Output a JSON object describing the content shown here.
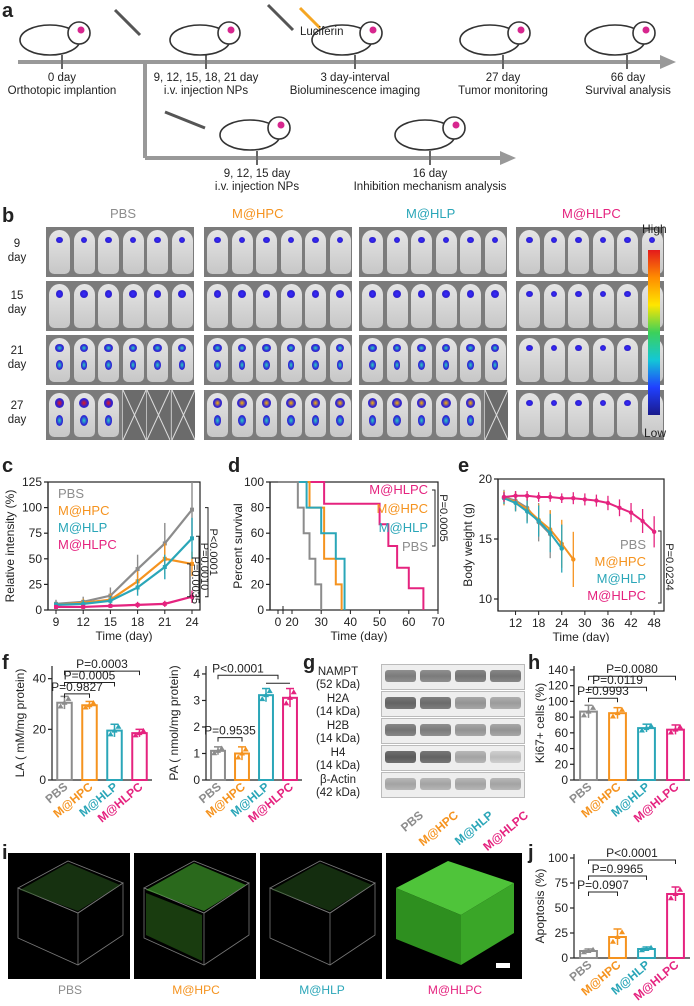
{
  "colors": {
    "pbs": "#8c8c8c",
    "hpc": "#f5931f",
    "hlp": "#2aa6b8",
    "hlpc": "#e5237f"
  },
  "panel_a": {
    "label": "a",
    "luciferin": "Luciferin",
    "top_timeline": [
      {
        "line1": "0 day",
        "line2": "Orthotopic implantion"
      },
      {
        "line1": "9, 12, 15, 18, 21 day",
        "line2": "i.v. injection NPs"
      },
      {
        "line1": "3 day-interval",
        "line2": "Bioluminescence imaging"
      },
      {
        "line1": "27 day",
        "line2": "Tumor monitoring"
      },
      {
        "line1": "66 day",
        "line2": "Survival analysis"
      }
    ],
    "bottom_timeline": [
      {
        "line1": "9, 12, 15 day",
        "line2": "i.v. injection NPs"
      },
      {
        "line1": "16 day",
        "line2": "Inhibition mechanism analysis"
      }
    ]
  },
  "panel_b": {
    "label": "b",
    "groups": [
      "PBS",
      "M@HPC",
      "M@HLP",
      "M@HLPC"
    ],
    "rows": [
      {
        "n": "9",
        "u": "day"
      },
      {
        "n": "15",
        "u": "day"
      },
      {
        "n": "21",
        "u": "day"
      },
      {
        "n": "27",
        "u": "day"
      }
    ],
    "colorbar_high": "High",
    "colorbar_low": "Low"
  },
  "panel_c": {
    "label": "c"
  },
  "panel_d": {
    "label": "d"
  },
  "panel_e": {
    "label": "e"
  },
  "panel_f": {
    "label": "f"
  },
  "panel_g": {
    "label": "g",
    "proteins": [
      {
        "name": "NAMPT",
        "kda": "(52 kDa)"
      },
      {
        "name": "H2A",
        "kda": "(14 kDa)"
      },
      {
        "name": "H2B",
        "kda": "(14 kDa)"
      },
      {
        "name": "H4",
        "kda": "(14 kDa)"
      },
      {
        "name": "β-Actin",
        "kda": "(42 kDa)"
      }
    ],
    "lanes": [
      "PBS",
      "M@HPC",
      "M@HLP",
      "M@HLPC"
    ]
  },
  "panel_h": {
    "label": "h"
  },
  "panel_i": {
    "label": "i",
    "groups": [
      "PBS",
      "M@HPC",
      "M@HLP",
      "M@HLPC"
    ]
  },
  "panel_j": {
    "label": "j"
  },
  "chart_data": [
    {
      "id": "c",
      "type": "line",
      "xlabel": "Time (day)",
      "ylabel": "Relative intensity (%)",
      "x": [
        9,
        12,
        15,
        18,
        21,
        24
      ],
      "xticks": [
        9,
        12,
        15,
        18,
        21,
        24
      ],
      "ylim": [
        0,
        125
      ],
      "yticks": [
        0,
        25,
        50,
        75,
        100,
        125
      ],
      "series": [
        {
          "name": "PBS",
          "color": "#8c8c8c",
          "values": [
            6,
            8,
            14,
            40,
            65,
            98
          ],
          "err": [
            4,
            5,
            8,
            14,
            20,
            30
          ]
        },
        {
          "name": "M@HPC",
          "color": "#f5931f",
          "values": [
            5,
            7,
            10,
            28,
            50,
            45
          ],
          "err": [
            3,
            4,
            6,
            10,
            15,
            12
          ]
        },
        {
          "name": "M@HLP",
          "color": "#2aa6b8",
          "values": [
            5,
            6,
            9,
            22,
            42,
            70
          ],
          "err": [
            3,
            4,
            5,
            8,
            12,
            20
          ]
        },
        {
          "name": "M@HLPC",
          "color": "#e5237f",
          "values": [
            3,
            3,
            4,
            5,
            6,
            13
          ],
          "err": [
            2,
            2,
            2,
            3,
            3,
            6
          ]
        }
      ],
      "pvalues": [
        "P<0.0001",
        "P=0.0010",
        "P=0.0035"
      ]
    },
    {
      "id": "d",
      "type": "line",
      "xlabel": "Time (day)",
      "ylabel": "Percent survival",
      "xticks": [
        0,
        20,
        30,
        40,
        50,
        60,
        70
      ],
      "ylim": [
        0,
        100
      ],
      "yticks": [
        0,
        20,
        40,
        60,
        80,
        100
      ],
      "series": [
        {
          "name": "M@HLPC",
          "color": "#e5237f",
          "steps": [
            [
              0,
              100
            ],
            [
              31,
              100
            ],
            [
              31,
              83
            ],
            [
              50,
              83
            ],
            [
              50,
              67
            ],
            [
              53,
              67
            ],
            [
              53,
              50
            ],
            [
              56,
              50
            ],
            [
              56,
              33
            ],
            [
              60,
              33
            ],
            [
              60,
              17
            ],
            [
              65,
              17
            ],
            [
              65,
              0
            ]
          ]
        },
        {
          "name": "M@HPC",
          "color": "#f5931f",
          "steps": [
            [
              0,
              100
            ],
            [
              26,
              100
            ],
            [
              26,
              80
            ],
            [
              31,
              80
            ],
            [
              31,
              40
            ],
            [
              35,
              40
            ],
            [
              35,
              20
            ],
            [
              37,
              20
            ],
            [
              37,
              0
            ]
          ]
        },
        {
          "name": "M@HLP",
          "color": "#2aa6b8",
          "steps": [
            [
              0,
              100
            ],
            [
              25,
              100
            ],
            [
              25,
              80
            ],
            [
              30,
              80
            ],
            [
              30,
              60
            ],
            [
              35,
              60
            ],
            [
              35,
              40
            ],
            [
              38,
              40
            ],
            [
              38,
              0
            ]
          ]
        },
        {
          "name": "PBS",
          "color": "#8c8c8c",
          "steps": [
            [
              0,
              100
            ],
            [
              22,
              100
            ],
            [
              22,
              80
            ],
            [
              24,
              80
            ],
            [
              24,
              60
            ],
            [
              26,
              60
            ],
            [
              26,
              40
            ],
            [
              28,
              40
            ],
            [
              28,
              20
            ],
            [
              30,
              20
            ],
            [
              30,
              0
            ]
          ]
        }
      ],
      "pvalues": [
        "P=0.0005"
      ]
    },
    {
      "id": "e",
      "type": "line",
      "xlabel": "Time (day)",
      "ylabel": "Body weight (g)",
      "xticks": [
        12,
        18,
        24,
        30,
        36,
        42,
        48
      ],
      "ylim": [
        9,
        20
      ],
      "yticks": [
        10,
        15,
        20
      ],
      "series": [
        {
          "name": "PBS",
          "color": "#8c8c8c",
          "x": [
            9,
            12,
            15,
            18,
            21
          ],
          "values": [
            18.5,
            18.2,
            17.6,
            16.4,
            15.4
          ],
          "err": [
            0.6,
            0.8,
            1.2,
            1.6,
            2.0
          ]
        },
        {
          "name": "M@HPC",
          "color": "#f5931f",
          "x": [
            9,
            12,
            15,
            18,
            21,
            24,
            27
          ],
          "values": [
            18.4,
            18.1,
            17.5,
            16.6,
            15.8,
            14.6,
            13.3
          ],
          "err": [
            0.6,
            0.8,
            1.0,
            1.3,
            1.6,
            2.0,
            2.3
          ]
        },
        {
          "name": "M@HLP",
          "color": "#2aa6b8",
          "x": [
            9,
            12,
            15,
            18,
            21,
            24
          ],
          "values": [
            18.4,
            18.0,
            17.3,
            16.5,
            15.5,
            14.2
          ],
          "err": [
            0.5,
            0.7,
            1.0,
            1.3,
            1.6,
            2.0
          ]
        },
        {
          "name": "M@HLPC",
          "color": "#e5237f",
          "x": [
            9,
            12,
            15,
            18,
            21,
            24,
            27,
            30,
            33,
            36,
            39,
            42,
            45,
            48
          ],
          "values": [
            18.5,
            18.6,
            18.6,
            18.5,
            18.5,
            18.4,
            18.4,
            18.3,
            18.2,
            18.0,
            17.6,
            17.2,
            16.5,
            15.6
          ],
          "err": [
            0.4,
            0.4,
            0.4,
            0.4,
            0.4,
            0.4,
            0.5,
            0.5,
            0.5,
            0.6,
            0.7,
            0.8,
            1.0,
            1.3
          ]
        }
      ],
      "pvalues": [
        "P=0.0234"
      ]
    },
    {
      "id": "f1",
      "type": "bar",
      "ylabel": "LA ( mM/mg protein)",
      "categories": [
        "PBS",
        "M@HPC",
        "M@HLP",
        "M@HLPC"
      ],
      "values": [
        30.5,
        29.5,
        19.5,
        18.5
      ],
      "err": [
        2.5,
        1.5,
        2.5,
        1.5
      ],
      "ylim": [
        0,
        45
      ],
      "yticks": [
        0,
        20,
        40
      ],
      "pvalues": [
        "P=0.0003",
        "P=0.0005",
        "P=0.9827"
      ]
    },
    {
      "id": "f2",
      "type": "bar",
      "ylabel": "PA ( nmol/mg protein)",
      "categories": [
        "PBS",
        "M@HPC",
        "M@HLP",
        "M@HLPC"
      ],
      "values": [
        1.1,
        1.0,
        3.2,
        3.1
      ],
      "err": [
        0.15,
        0.25,
        0.25,
        0.35
      ],
      "ylim": [
        0,
        4.3
      ],
      "yticks": [
        0,
        1,
        2,
        3,
        4
      ],
      "pvalues": [
        "P<0.0001",
        "P=0.9535"
      ]
    },
    {
      "id": "h",
      "type": "bar",
      "ylabel": "Ki67+ cells (%)",
      "categories": [
        "PBS",
        "M@HPC",
        "M@HLP",
        "M@HLPC"
      ],
      "values": [
        87,
        85,
        66,
        64
      ],
      "err": [
        8,
        7,
        5,
        6
      ],
      "ylim": [
        0,
        145
      ],
      "yticks": [
        0,
        20,
        40,
        60,
        80,
        100,
        120,
        140
      ],
      "pvalues": [
        "P=0.0080",
        "P=0.0119",
        "P=0.9993"
      ]
    },
    {
      "id": "j",
      "type": "bar",
      "ylabel": "Apoptosis (%)",
      "categories": [
        "PBS",
        "M@HPC",
        "M@HLP",
        "M@HLPC"
      ],
      "values": [
        7,
        21,
        9,
        64
      ],
      "err": [
        2,
        8,
        2,
        7
      ],
      "ylim": [
        0,
        104
      ],
      "yticks": [
        0,
        25,
        50,
        75,
        100
      ],
      "pvalues": [
        "P<0.0001",
        "P=0.9965",
        "P=0.0907"
      ]
    }
  ]
}
